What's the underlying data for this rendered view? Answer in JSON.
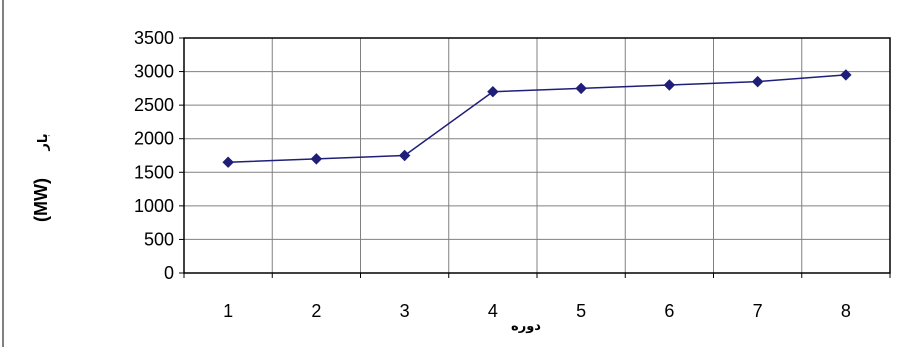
{
  "chart_data": {
    "type": "line",
    "title": "",
    "xlabel": "دوره",
    "ylabel_unit": "(MW)",
    "ylabel_word": "بار",
    "x": [
      1,
      2,
      3,
      4,
      5,
      6,
      7,
      8
    ],
    "x_tick_labels": [
      "1",
      "2",
      "3",
      "4",
      "5",
      "6",
      "7",
      "8"
    ],
    "y_tick_labels": [
      "0",
      "500",
      "1000",
      "1500",
      "2000",
      "2500",
      "3000",
      "3500"
    ],
    "ylim": [
      0,
      3500
    ],
    "y_ticks": [
      0,
      500,
      1000,
      1500,
      2000,
      2500,
      3000,
      3500
    ],
    "grid": true,
    "legend": "none",
    "series": [
      {
        "values": [
          1650,
          1700,
          1750,
          2700,
          2750,
          2800,
          2850,
          2950
        ],
        "color": "#1f1f7a"
      }
    ]
  }
}
